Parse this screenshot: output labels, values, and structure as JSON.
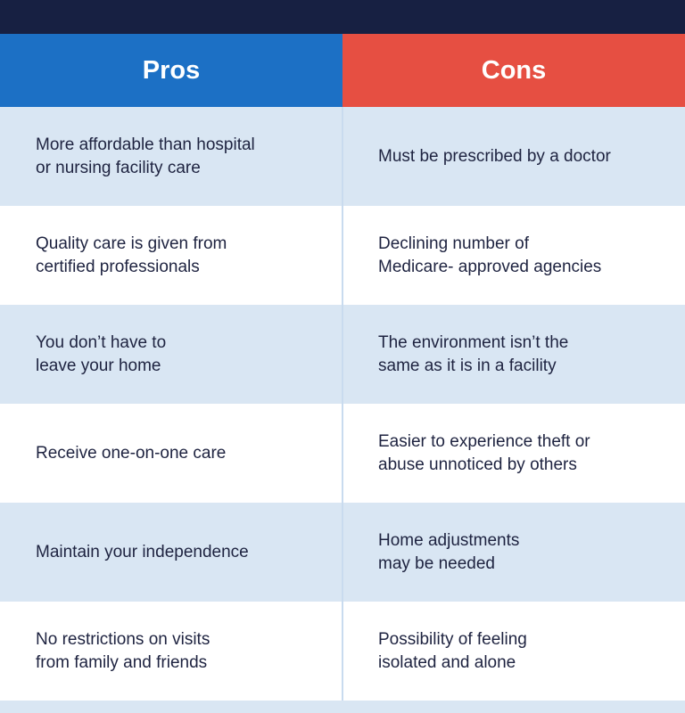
{
  "header": {
    "pros_label": "Pros",
    "cons_label": "Cons"
  },
  "colors": {
    "top_bar": "#172042",
    "pros_header": "#1c70c5",
    "cons_header": "#e64f42",
    "row_light": "#d9e6f3",
    "row_white": "#ffffff",
    "text": "#1e2340"
  },
  "rows": [
    {
      "pros": "More affordable than hospital\nor nursing facility care",
      "cons": "Must be prescribed by a doctor"
    },
    {
      "pros": "Quality care is given from\ncertified professionals",
      "cons": "Declining number of\nMedicare- approved agencies"
    },
    {
      "pros": "You don’t have to\nleave your home",
      "cons": "The environment isn’t the\nsame as it is in a facility"
    },
    {
      "pros": "Receive one-on-one care",
      "cons": "Easier to experience theft or\nabuse unnoticed by others"
    },
    {
      "pros": "Maintain your independence",
      "cons": "Home adjustments\nmay be needed"
    },
    {
      "pros": "No restrictions on visits\nfrom family and friends",
      "cons": "Possibility of feeling\nisolated and alone"
    }
  ]
}
